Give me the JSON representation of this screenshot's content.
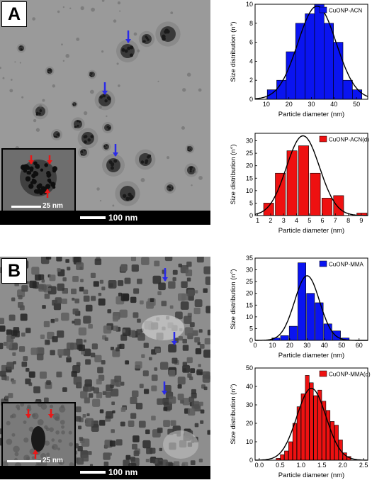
{
  "panels": [
    {
      "letter": "A",
      "scalebar_main": "100 nm",
      "scalebar_inset": "25 nm",
      "style": "sparse",
      "charts": [
        {
          "type": "bar",
          "legend": "CuONP-ACN",
          "bar_color": "#0a14f0",
          "xlabel": "Particle diameter (nm)",
          "ylabel": "Size distribution (n°)",
          "xlim": [
            5,
            55
          ],
          "ylim": [
            0,
            10
          ],
          "xticks": [
            10,
            20,
            30,
            40,
            50
          ],
          "yticks": [
            0,
            2,
            4,
            6,
            8,
            10
          ],
          "bin_width": 4.2,
          "x": [
            12.5,
            16.7,
            20.9,
            25.1,
            29.3,
            33.5,
            37.7,
            41.9,
            46.1,
            50.3
          ],
          "values": [
            1,
            2,
            5,
            8,
            9,
            10,
            8,
            6,
            2,
            1
          ],
          "fit": {
            "center": 32.5,
            "sigma": 8.5,
            "amplitude": 9.8
          }
        },
        {
          "type": "bar",
          "legend": "CuONP-ACN(d)",
          "bar_color": "#ee1111",
          "xlabel": "Particle diameter (nm)",
          "ylabel": "Size distribution (n°)",
          "xlim": [
            0.8,
            9.5
          ],
          "ylim": [
            0,
            33
          ],
          "xticks": [
            1,
            2,
            3,
            4,
            5,
            6,
            7,
            8,
            9
          ],
          "yticks": [
            0,
            5,
            10,
            15,
            20,
            25,
            30
          ],
          "bin_width": 0.78,
          "x": [
            1.85,
            2.75,
            3.65,
            4.55,
            5.45,
            6.35,
            7.25,
            8.15,
            9.05
          ],
          "values": [
            5,
            17,
            26,
            28,
            17,
            7,
            8,
            0,
            1
          ],
          "fit": {
            "center": 4.5,
            "sigma": 1.28,
            "amplitude": 32
          }
        }
      ]
    },
    {
      "letter": "B",
      "scalebar_main": "100 nm",
      "scalebar_inset": "25 nm",
      "style": "dense",
      "charts": [
        {
          "type": "bar",
          "legend": "CuONP-MMA",
          "bar_color": "#0a14f0",
          "xlabel": "Particle diameter (nm)",
          "ylabel": "Size distribution (n°)",
          "xlim": [
            0,
            65
          ],
          "ylim": [
            0,
            35
          ],
          "xticks": [
            0,
            10,
            20,
            30,
            40,
            50,
            60
          ],
          "yticks": [
            0,
            5,
            10,
            15,
            20,
            25,
            30,
            35
          ],
          "bin_width": 4.6,
          "x": [
            12,
            17,
            22,
            27,
            32,
            37,
            42,
            47,
            52
          ],
          "values": [
            1,
            2,
            6,
            33,
            20,
            16,
            7,
            4,
            1
          ],
          "fit": {
            "center": 30,
            "sigma": 7.2,
            "amplitude": 27.5
          }
        },
        {
          "type": "bar",
          "legend": "CuONP-MMA(d)",
          "bar_color": "#ee1111",
          "xlabel": "Particle diameter (nm)",
          "ylabel": "Size distribution (n°)",
          "xlim": [
            -0.1,
            2.6
          ],
          "ylim": [
            0,
            50
          ],
          "xticks": [
            0.0,
            0.5,
            1.0,
            1.5,
            2.0,
            2.5
          ],
          "yticks": [
            0,
            10,
            20,
            30,
            40,
            50
          ],
          "bin_width": 0.092,
          "x": [
            0.45,
            0.55,
            0.65,
            0.75,
            0.85,
            0.95,
            1.05,
            1.15,
            1.25,
            1.35,
            1.45,
            1.55,
            1.65,
            1.75,
            1.85,
            1.95,
            2.05,
            2.15
          ],
          "values": [
            1,
            3,
            5,
            10,
            20,
            29,
            36,
            46,
            42,
            35,
            38,
            32,
            27,
            21,
            19,
            11,
            4,
            2
          ],
          "fit": {
            "center": 1.25,
            "sigma": 0.35,
            "amplitude": 39
          }
        }
      ]
    }
  ]
}
